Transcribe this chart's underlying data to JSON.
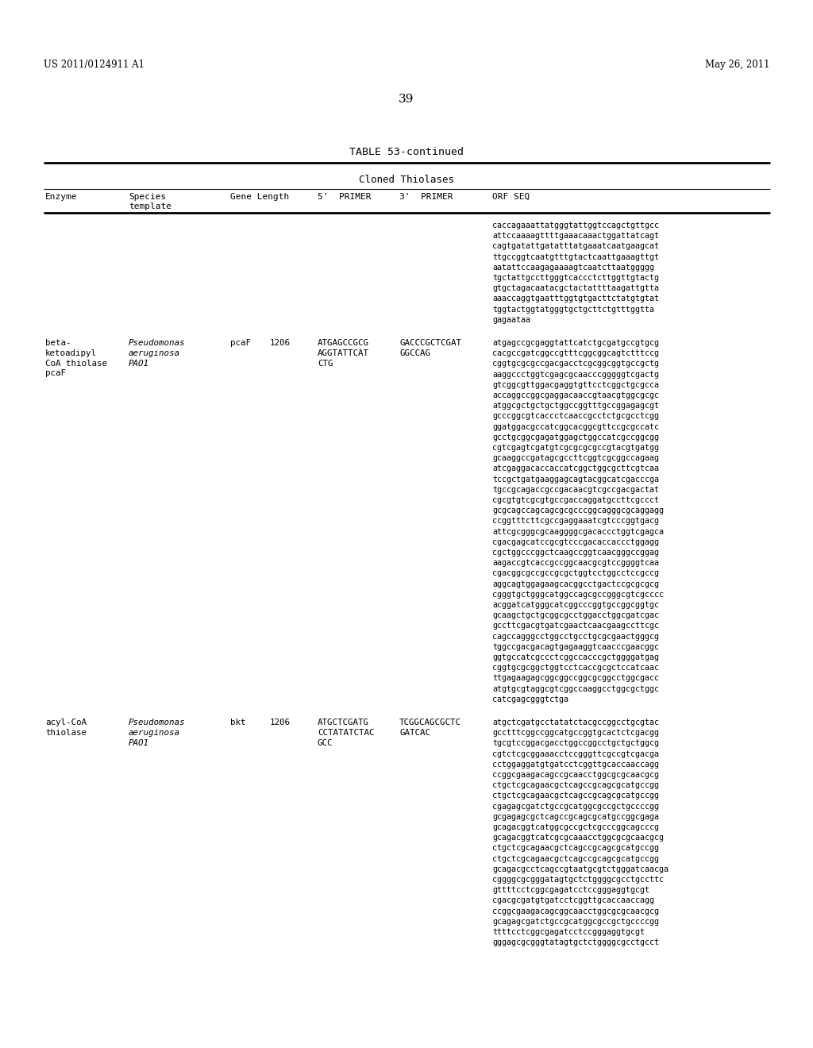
{
  "background_color": "#ffffff",
  "header_left": "US 2011/0124911 A1",
  "header_right": "May 26, 2011",
  "page_number": "39",
  "table_title": "TABLE 53-continued",
  "table_subtitle": "Cloned Thiolases",
  "continuation_orf": [
    "caccagaaattatgggtattggtccagctgttgcc",
    "attccaaaagttttgaaacaaactggattatcagt",
    "cagtgatattgatatttatgaaatcaatgaagcat",
    "ttgccggtcaatgtttgtactcaattgaaagttgt",
    "aatattccaagagaaaagtcaatcttaatggggg",
    "tgctattgccttgggtcaccctcttggttgtactg",
    "gtgctagacaatacgctactattttaagattgtta",
    "aaaccaggtgaatttggtgtgacttctatgtgtat",
    "tggtactggtatgggtgctgcttctgtttggtta",
    "gagaataa"
  ],
  "row1_enzyme": "beta-\nketoadipyl\nCoA thiolase\npcaF",
  "row1_species": "Pseudomonas\naeruginosa\nPAO1",
  "row1_gene": "pcaF",
  "row1_length": "1206",
  "row1_primer5": "ATGAGCCGCG\nAGGTATTCAT\nCTG",
  "row1_primer3": "GACCCGCTCGAT\nGGCCAG",
  "row1_orf": [
    "atgagccgcgaggtattcatctgcgatgccgtgcg",
    "cacgccgatcggccgtttcggcggcagtctttccg",
    "cggtgcgcgccgacgacctcgcggcggtgccgctg",
    "aaggccctggtcgagcgcaacccgggggtcgactg",
    "gtcggcgttggacgaggtgttcctcggctgcgcca",
    "accaggccggcgaggacaaccgtaacgtggcgcgc",
    "atggcgctgctgctggccggtttgccggagagcgt",
    "gcccggcgtcaccctcaaccgcctctgcgcctcgg",
    "ggatggacgccatcggcacggcgttccgcgccatc",
    "gcctgcggcgagatggagctggccatcgccggcgg",
    "cgtcgagtcgatgtcgcgcgcgccgtacgtgatgg",
    "gcaaggccgatagcgccttcggtcgcggccagaag",
    "atcgaggacaccaccatcggctggcgcttcgtcaa",
    "tccgctgatgaaggagcagtacggcatcgacccga",
    "tgccgcagaccgccgacaacgtcgccgacgactat",
    "cgcgtgtcgcgtgccgaccaggatgccttcgccct",
    "gcgcagccagcagcgcgcccggcagggcgcaggagg",
    "ccggtttcttcgccgaggaaatcgtcccggtgacg",
    "attcgcgggcgcaaggggcgacaccctggtcgagca",
    "cgacgagcatccgcgtcccgacaccaccctggagg",
    "cgctggcccggctcaagccggtcaacgggccggag",
    "aagaccgtcaccgccggcaacgcgtccggggtcaa",
    "cgacggcgccgccgcgctggtcctggcctccgccg",
    "aggcagtggagaagcacggcctgactccgcgcgcg",
    "cgggtgctgggcatggccagcgccgggcgtcgcccc",
    "acggatcatgggcatcggcccggtgccggcggtgc",
    "gcaagctgctgcggcgcctggacctggcgatcgac",
    "gccttcgacgtgatcgaactcaacgaagccttcgc",
    "cagccagggcctggcctgcctgcgcgaactgggcg",
    "tggccgacgacagtgagaaggtcaacccgaacggc",
    "ggtgccatcgccctcggccacccgctggggatgag",
    "cggtgcgcggctggtcctcaccgcgctccatcaac",
    "ttgagaagagcggcggccggcgcggcctggcgacc",
    "atgtgcgtaggcgtcggccaaggcctggcgctggc",
    "catcgagcgggtctga"
  ],
  "row2_enzyme": "acyl-CoA\nthiolase",
  "row2_species": "Pseudomonas\naeruginosa\nPAO1",
  "row2_gene": "bkt",
  "row2_length": "1206",
  "row2_primer5": "ATGCTCGATG\nCCTATATCTAC\nGCC",
  "row2_primer3": "TCGGCAGCGCTC\nGATCAC",
  "row2_orf": [
    "atgctcgatgcctatatctacgccggcctgcgtac",
    "gcctttcggccggcatgccggtgcactctcgacgg",
    "tgcgtccggacgacctggccggcctgctgctggcg",
    "cgtctcgcggaaacctccgggttcgccgtcgacga",
    "cctggaggatgtgatcctcggttgcaccaaccagg",
    "ccggcgaagacagccgcaacctggcgcgcaacgcg",
    "ctgctcgcagaacgctcagccgcagcgcatgccgg",
    "ctgctcgcagaacgctcagccgcagcgcatgccgg",
    "cgagagcgatctgccgcatggcgccgctgccccgg",
    "gcgagagcgctcagccgcagcgcatgccggcgaga",
    "gcagacggtcatggcgccgctcgcccggcagcccg",
    "gcagacggtcatcgcgcaaacctggcgcgcaacgcg",
    "ctgctcgcagaacgctcagccgcagcgcatgccgg",
    "ctgctcgcagaacgctcagccgcagcgcatgccgg",
    "gcagacgcctcagccgtaatgcgtctgggatcaacga",
    "cggggcgcgggatagtgctctggggcgcctgccttc",
    "gttttcctcggcgagatcctccgggaggtgcgt",
    "cgacgcgatgtgatcctcggttgcaccaaccagg",
    "ccggcgaagacagcggcaacctggcgcgcaacgcg",
    "gcagagcgatctgccgcatggcgccgctgccccgg",
    "ttttcctcggcgagatcctccgggaggtgcgt",
    "gggagcgcgggtatagtgctctggggcgcctgcct"
  ]
}
